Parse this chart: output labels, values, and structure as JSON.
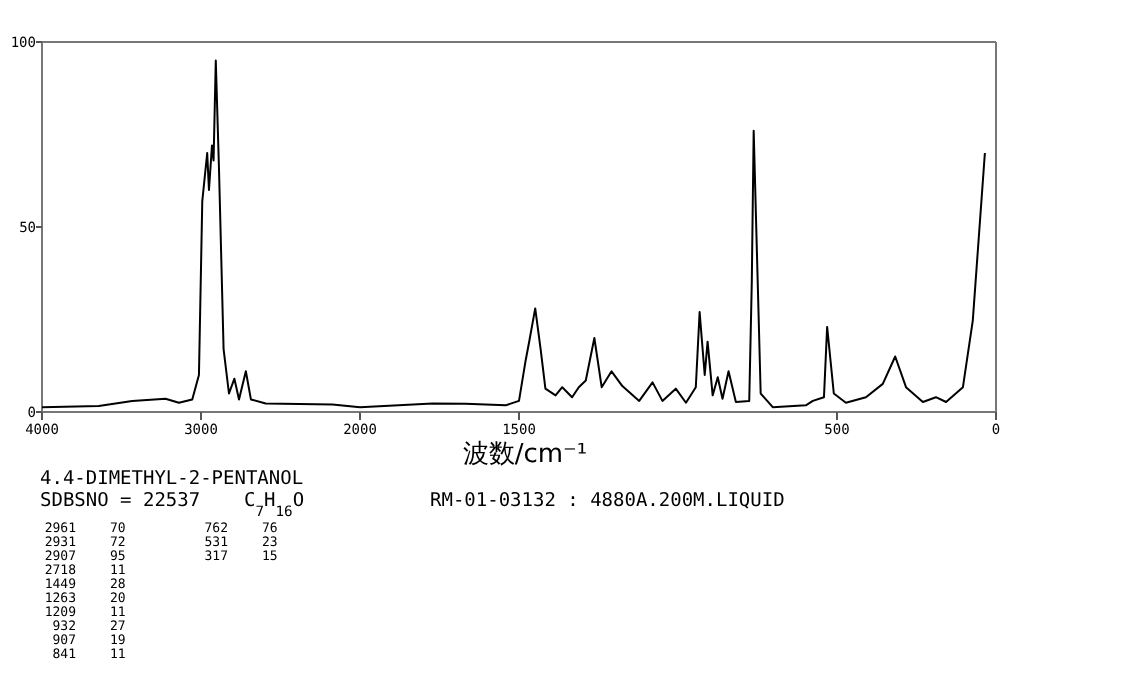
{
  "chart_data": [
    {
      "type": "line",
      "title": "4.4-DIMETHYL-2-PENTANOL",
      "xlabel": "波数/cm⁻¹",
      "color": "#000000",
      "xlim": [
        4000,
        2000
      ],
      "xticks": [
        4000,
        3000,
        2000
      ],
      "ylim": [
        0,
        100
      ],
      "yticks": [
        0,
        50,
        100
      ],
      "x": [
        4000,
        3643,
        3433,
        3223,
        3139,
        3055,
        3013,
        2992,
        2961,
        2950,
        2931,
        2921,
        2907,
        2887,
        2858,
        2824,
        2790,
        2761,
        2718,
        2686,
        2593,
        2173,
        2000
      ],
      "values": [
        1.3,
        1.6,
        3,
        3.6,
        2.5,
        3.4,
        10,
        57,
        70,
        60,
        72,
        68,
        95,
        66,
        17,
        5,
        9,
        3.4,
        11,
        3.4,
        2.3,
        2,
        1.3
      ],
      "annotations": [
        "SDBSNO = 22537",
        "C$_{7}$H$_{16}$O",
        "RM-01-03132 : 4880A.200M.LIQUID",
        "2961 70",
        "2931 72",
        "2907 95",
        "2718 11",
        "1449 28",
        "1263 20",
        "1209 11",
        "932 27",
        "907 19",
        "841 11",
        "762 76",
        "531 23",
        "317 15"
      ]
    },
    {
      "type": "line",
      "color": "#000000",
      "xlim": [
        2000,
        0
      ],
      "xticks": [
        1500,
        500,
        0
      ],
      "ylim": [
        0,
        100
      ],
      "tick_labels": "x",
      "x": [
        2000,
        1772,
        1668,
        1542,
        1500,
        1479,
        1468,
        1449,
        1432,
        1417,
        1385,
        1364,
        1333,
        1312,
        1290,
        1263,
        1240,
        1209,
        1175,
        1122,
        1080,
        1049,
        1007,
        975,
        944,
        932,
        916,
        907,
        891,
        875,
        860,
        841,
        818,
        776,
        768,
        762,
        740,
        702,
        598,
        576,
        541,
        531,
        510,
        472,
        409,
        356,
        317,
        283,
        230,
        189,
        157,
        104,
        73,
        35
      ],
      "values": [
        1.3,
        2.3,
        2.2,
        1.8,
        3,
        14,
        19,
        28,
        17,
        6.3,
        4.5,
        6.7,
        4,
        6.7,
        8.5,
        20,
        6.7,
        11,
        7,
        3,
        8,
        3,
        6.3,
        2.5,
        6.7,
        27,
        10,
        19,
        4.5,
        9.4,
        3.6,
        11,
        2.7,
        3,
        35,
        76,
        5,
        1.3,
        1.8,
        3,
        4,
        23,
        5,
        2.5,
        4,
        7.6,
        15,
        6.7,
        2.7,
        4,
        2.7,
        6.7,
        24.7,
        70
      ]
    }
  ]
}
